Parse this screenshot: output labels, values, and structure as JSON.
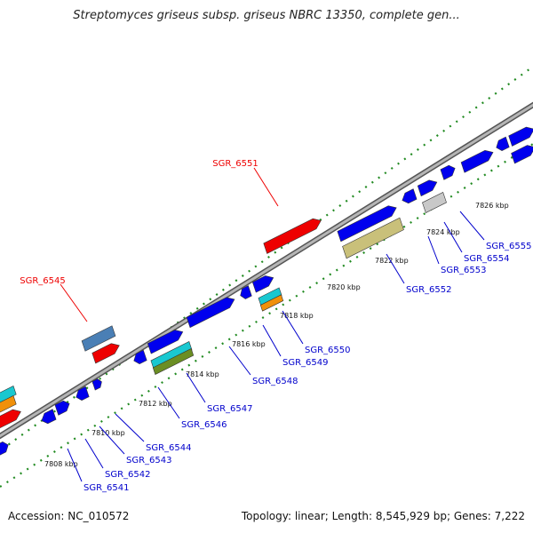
{
  "title": "Streptomyces griseus subsp. griseus NBRC 13350, complete gen...",
  "footer": {
    "accession": "Accession: NC_010572",
    "topology": "Topology: linear; Length: 8,545,929 bp; Genes: 7,222"
  },
  "colors": {
    "forward": "#0000ee",
    "reverse": "#0000ee",
    "highlight": "#ee0000",
    "steelblue": "#4a7fb5",
    "cyan": "#19c8d0",
    "orange": "#f0900a",
    "olive": "#6b8e23",
    "khaki": "#c9c07a",
    "gray": "#c8c8c8",
    "backbone": "#888888",
    "tick": "#228b22"
  },
  "kbp_labels": [
    "7808 kbp",
    "7810 kbp",
    "7812 kbp",
    "7814 kbp",
    "7816 kbp",
    "7818 kbp",
    "7820 kbp",
    "7822 kbp",
    "7824 kbp",
    "7826 kbp"
  ],
  "upper_labels": [
    "SGR_6545",
    "SGR_6551"
  ],
  "lower_labels": [
    "SGR_6541",
    "SGR_6542",
    "SGR_6543",
    "SGR_6544",
    "SGR_6546",
    "SGR_6547",
    "SGR_6548",
    "SGR_6549",
    "SGR_6550",
    "SGR_6552",
    "SGR_6553",
    "SGR_6554",
    "SGR_6555"
  ]
}
